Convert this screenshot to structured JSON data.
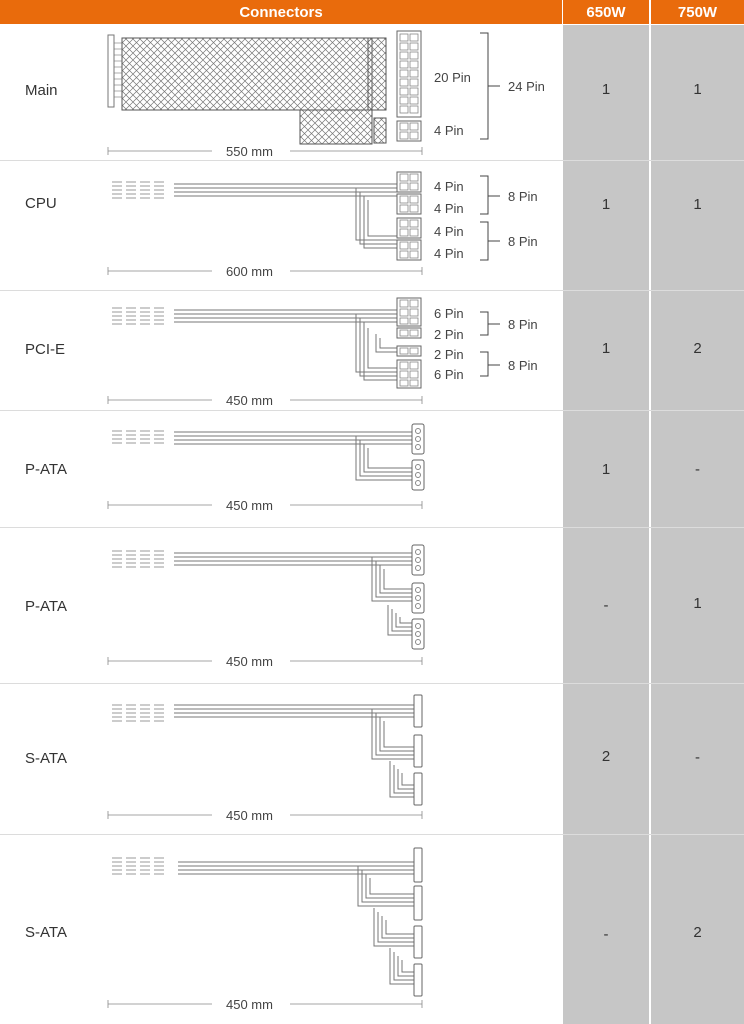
{
  "header": {
    "connectors": "Connectors",
    "col_650": "650W",
    "col_750": "750W"
  },
  "rows": [
    {
      "label": "Main",
      "v650": "1",
      "v750": "1",
      "length": "550 mm",
      "pins": [
        "20 Pin",
        "4 Pin"
      ],
      "group": "24 Pin"
    },
    {
      "label": "CPU",
      "v650": "1",
      "v750": "1",
      "length": "600 mm",
      "pins": [
        "4 Pin",
        "4 Pin",
        "4 Pin",
        "4 Pin"
      ],
      "groups": [
        "8 Pin",
        "8 Pin"
      ]
    },
    {
      "label": "PCI-E",
      "v650": "1",
      "v750": "2",
      "length": "450 mm",
      "pins": [
        "6 Pin",
        "2 Pin",
        "2 Pin",
        "6 Pin"
      ],
      "groups": [
        "8 Pin",
        "8 Pin"
      ]
    },
    {
      "label": "P-ATA",
      "v650": "1",
      "v750": "-",
      "length": "450 mm"
    },
    {
      "label": "P-ATA",
      "v650": "-",
      "v750": "1",
      "length": "450 mm"
    },
    {
      "label": "S-ATA",
      "v650": "2",
      "v750": "-",
      "length": "450 mm"
    },
    {
      "label": "S-ATA",
      "v650": "-",
      "v750": "2",
      "length": "450 mm"
    }
  ]
}
